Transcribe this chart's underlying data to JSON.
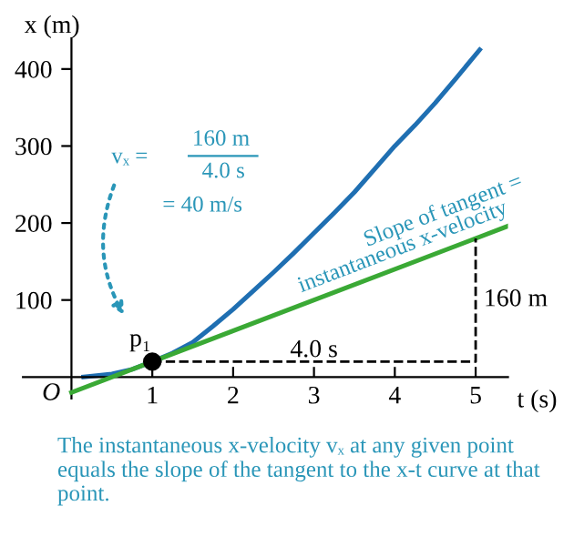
{
  "chart_data": {
    "type": "line",
    "xlabel": "t (s)",
    "ylabel": "x (m)",
    "xlim": [
      -0.6,
      5.4
    ],
    "ylim": [
      -28,
      440
    ],
    "xticks": [
      1,
      2,
      3,
      4,
      5
    ],
    "yticks": [
      100,
      200,
      300,
      400
    ],
    "grid": false,
    "legend": false,
    "series": [
      {
        "color": "#1f6fb2",
        "x": [
          0.15,
          0.5,
          0.75,
          1,
          1.25,
          1.5,
          1.75,
          2,
          2.25,
          2.5,
          2.75,
          3,
          3.25,
          3.5,
          3.75,
          4,
          4.25,
          4.5,
          4.75,
          5.05
        ],
        "values": [
          0,
          4,
          10,
          20,
          31,
          45,
          66,
          88,
          112,
          136,
          161,
          187,
          213,
          240,
          270,
          300,
          327,
          356,
          387,
          425
        ]
      },
      {
        "color": "#3aa935",
        "x": [
          0,
          5.4
        ],
        "values": [
          -20,
          196
        ]
      },
      {
        "color": "#000000",
        "x": [
          1,
          5,
          5
        ],
        "values": [
          20,
          20,
          180
        ],
        "line_style": "dashed"
      },
      {
        "type": "scatter",
        "color": "#000000",
        "x": [
          1
        ],
        "values": [
          20
        ],
        "marker": "circle"
      }
    ],
    "annotations": [
      "vₓ =",
      "160 m",
      "4.0 s",
      "= 40 m/s",
      "Slope of tangent =",
      "instantaneous x-velocity",
      {
        "text": "p₁",
        "x": 1,
        "y": 20
      },
      {
        "text": "4.0 s",
        "x": 3,
        "y": 20
      },
      {
        "text": "160 m",
        "x": 5,
        "y": 100
      },
      "O",
      "The instantaneous x-velocity vₓ at any given point equals the slope of the tangent to the x-t curve at that point."
    ]
  }
}
